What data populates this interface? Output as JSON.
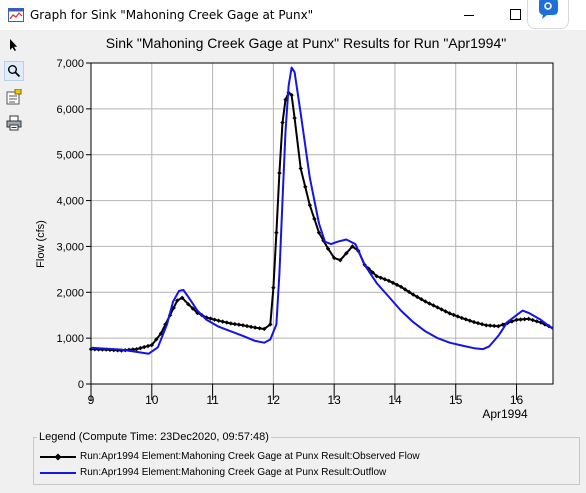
{
  "window": {
    "title": "Graph for Sink \"Mahoning Creek Gage at Punx\""
  },
  "toolbar": {
    "tools": [
      "pointer-icon",
      "zoom-icon",
      "properties-icon",
      "print-icon"
    ]
  },
  "chart_data": {
    "type": "line",
    "title": "Sink \"Mahoning Creek Gage at Punx\" Results for Run \"Apr1994\"",
    "ylabel": "Flow (cfs)",
    "xlabel": "Apr1994",
    "ylim": [
      0,
      7000
    ],
    "yticks": [
      "0",
      "1,000",
      "2,000",
      "3,000",
      "4,000",
      "5,000",
      "6,000",
      "7,000"
    ],
    "xlim": [
      9,
      16.6
    ],
    "xticks": [
      "9",
      "10",
      "11",
      "12",
      "13",
      "14",
      "15",
      "16"
    ],
    "grid": true,
    "series": [
      {
        "name": "Run:Apr1994 Element:Mahoning Creek Gage at Punx Result:Observed Flow",
        "color": "#000000",
        "marker": "diamond",
        "points": [
          [
            9.0,
            760
          ],
          [
            9.25,
            750
          ],
          [
            9.5,
            730
          ],
          [
            9.75,
            760
          ],
          [
            10.0,
            850
          ],
          [
            10.15,
            1100
          ],
          [
            10.3,
            1500
          ],
          [
            10.42,
            1820
          ],
          [
            10.5,
            1880
          ],
          [
            10.6,
            1740
          ],
          [
            10.75,
            1550
          ],
          [
            10.9,
            1450
          ],
          [
            11.1,
            1380
          ],
          [
            11.3,
            1320
          ],
          [
            11.5,
            1280
          ],
          [
            11.7,
            1230
          ],
          [
            11.85,
            1200
          ],
          [
            11.95,
            1300
          ],
          [
            12.0,
            2100
          ],
          [
            12.05,
            3300
          ],
          [
            12.1,
            4600
          ],
          [
            12.15,
            5700
          ],
          [
            12.2,
            6200
          ],
          [
            12.25,
            6350
          ],
          [
            12.3,
            6300
          ],
          [
            12.35,
            5800
          ],
          [
            12.45,
            4700
          ],
          [
            12.6,
            3900
          ],
          [
            12.75,
            3300
          ],
          [
            12.9,
            2950
          ],
          [
            13.0,
            2750
          ],
          [
            13.1,
            2700
          ],
          [
            13.2,
            2850
          ],
          [
            13.3,
            3000
          ],
          [
            13.4,
            2900
          ],
          [
            13.5,
            2600
          ],
          [
            13.7,
            2350
          ],
          [
            13.9,
            2250
          ],
          [
            14.1,
            2120
          ],
          [
            14.3,
            1950
          ],
          [
            14.5,
            1800
          ],
          [
            14.7,
            1670
          ],
          [
            14.9,
            1540
          ],
          [
            15.1,
            1440
          ],
          [
            15.3,
            1350
          ],
          [
            15.5,
            1280
          ],
          [
            15.7,
            1260
          ],
          [
            15.85,
            1330
          ],
          [
            16.0,
            1400
          ],
          [
            16.2,
            1420
          ],
          [
            16.4,
            1340
          ],
          [
            16.6,
            1220
          ]
        ]
      },
      {
        "name": "Run:Apr1994 Element:Mahoning Creek Gage at Punx Result:Outflow",
        "color": "#1414e6",
        "marker": "none",
        "points": [
          [
            9.0,
            790
          ],
          [
            9.25,
            770
          ],
          [
            9.5,
            750
          ],
          [
            9.75,
            700
          ],
          [
            9.95,
            660
          ],
          [
            10.1,
            800
          ],
          [
            10.25,
            1300
          ],
          [
            10.35,
            1800
          ],
          [
            10.45,
            2030
          ],
          [
            10.52,
            2050
          ],
          [
            10.6,
            1900
          ],
          [
            10.75,
            1600
          ],
          [
            10.9,
            1400
          ],
          [
            11.1,
            1250
          ],
          [
            11.3,
            1150
          ],
          [
            11.5,
            1050
          ],
          [
            11.7,
            940
          ],
          [
            11.85,
            900
          ],
          [
            11.95,
            970
          ],
          [
            12.05,
            1300
          ],
          [
            12.1,
            2400
          ],
          [
            12.15,
            4000
          ],
          [
            12.2,
            5500
          ],
          [
            12.25,
            6500
          ],
          [
            12.3,
            6900
          ],
          [
            12.35,
            6800
          ],
          [
            12.45,
            5900
          ],
          [
            12.6,
            4500
          ],
          [
            12.75,
            3500
          ],
          [
            12.85,
            3100
          ],
          [
            12.95,
            3050
          ],
          [
            13.05,
            3100
          ],
          [
            13.2,
            3150
          ],
          [
            13.35,
            3050
          ],
          [
            13.5,
            2600
          ],
          [
            13.7,
            2200
          ],
          [
            13.9,
            1900
          ],
          [
            14.1,
            1600
          ],
          [
            14.3,
            1350
          ],
          [
            14.5,
            1150
          ],
          [
            14.7,
            1000
          ],
          [
            14.9,
            900
          ],
          [
            15.1,
            840
          ],
          [
            15.3,
            780
          ],
          [
            15.45,
            760
          ],
          [
            15.55,
            820
          ],
          [
            15.7,
            1050
          ],
          [
            15.85,
            1350
          ],
          [
            16.0,
            1500
          ],
          [
            16.1,
            1600
          ],
          [
            16.2,
            1550
          ],
          [
            16.4,
            1400
          ],
          [
            16.6,
            1200
          ]
        ]
      }
    ]
  },
  "legend": {
    "title": "Legend (Compute Time: 23Dec2020, 09:57:48)",
    "items": [
      {
        "label": "Run:Apr1994 Element:Mahoning Creek Gage at Punx Result:Observed Flow",
        "color": "#000000"
      },
      {
        "label": "Run:Apr1994 Element:Mahoning Creek Gage at Punx Result:Outflow",
        "color": "#1414e6"
      }
    ]
  }
}
